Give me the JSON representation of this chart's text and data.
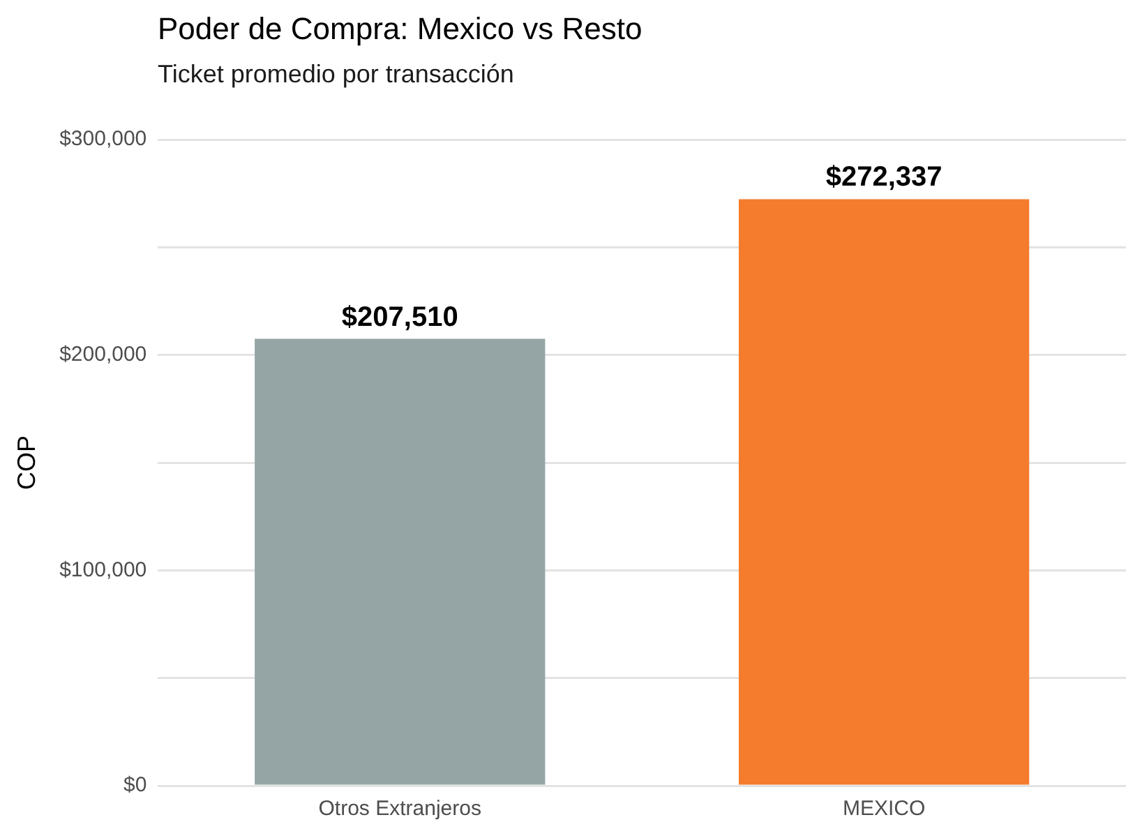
{
  "chart_data": {
    "type": "bar",
    "title": "Poder de Compra: Mexico vs Resto",
    "subtitle": "Ticket promedio por transacción",
    "ylabel": "COP",
    "categories": [
      "Otros Extranjeros",
      "MEXICO"
    ],
    "values": [
      207510,
      272337
    ],
    "colors": [
      "#95a5a6",
      "#f47c2c"
    ],
    "value_labels": [
      "$207,510",
      "$272,337"
    ],
    "ylim": [
      0,
      300000
    ],
    "yticks": [
      {
        "value": 0,
        "label": "$0"
      },
      {
        "value": 50000,
        "label": null
      },
      {
        "value": 100000,
        "label": "$100,000"
      },
      {
        "value": 150000,
        "label": null
      },
      {
        "value": 200000,
        "label": "$200,000"
      },
      {
        "value": 250000,
        "label": null
      },
      {
        "value": 300000,
        "label": "$300,000"
      }
    ],
    "grid": "y",
    "legend": false
  }
}
